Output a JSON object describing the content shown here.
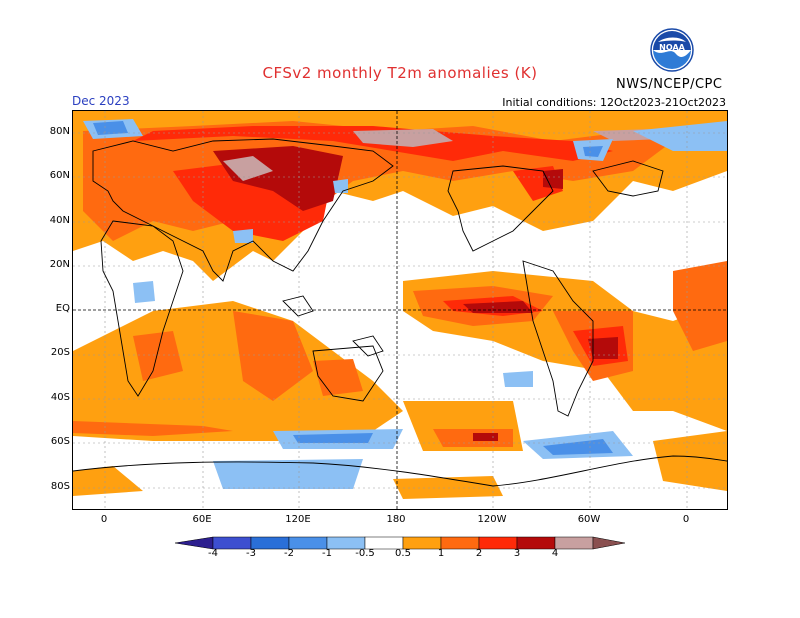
{
  "header": {
    "title": "CFSv2 monthly T2m anomalies (K)",
    "month": "Dec 2023",
    "initial_conditions": "Initial conditions: 12Oct2023-21Oct2023",
    "agency": "NWS/NCEP/CPC",
    "logo_text": "NOAA"
  },
  "map": {
    "lat_labels": [
      "80N",
      "60N",
      "40N",
      "20N",
      "EQ",
      "20S",
      "40S",
      "60S",
      "80S"
    ],
    "lon_labels": [
      "0",
      "60E",
      "120E",
      "180",
      "120W",
      "60W",
      "0"
    ]
  },
  "colorbar": {
    "labels": [
      "-4",
      "-3",
      "-2",
      "-1",
      "-0.5",
      "0.5",
      "1",
      "2",
      "3",
      "4"
    ],
    "colors": [
      "#2d1f8f",
      "#3d4fd0",
      "#2a6fd8",
      "#4a90e8",
      "#8cc0f4",
      "#ffffff",
      "#ffa010",
      "#ff6a10",
      "#ff2a08",
      "#b40a0a",
      "#8a0a0a",
      "#c8a0a0",
      "#8a5050"
    ]
  }
}
